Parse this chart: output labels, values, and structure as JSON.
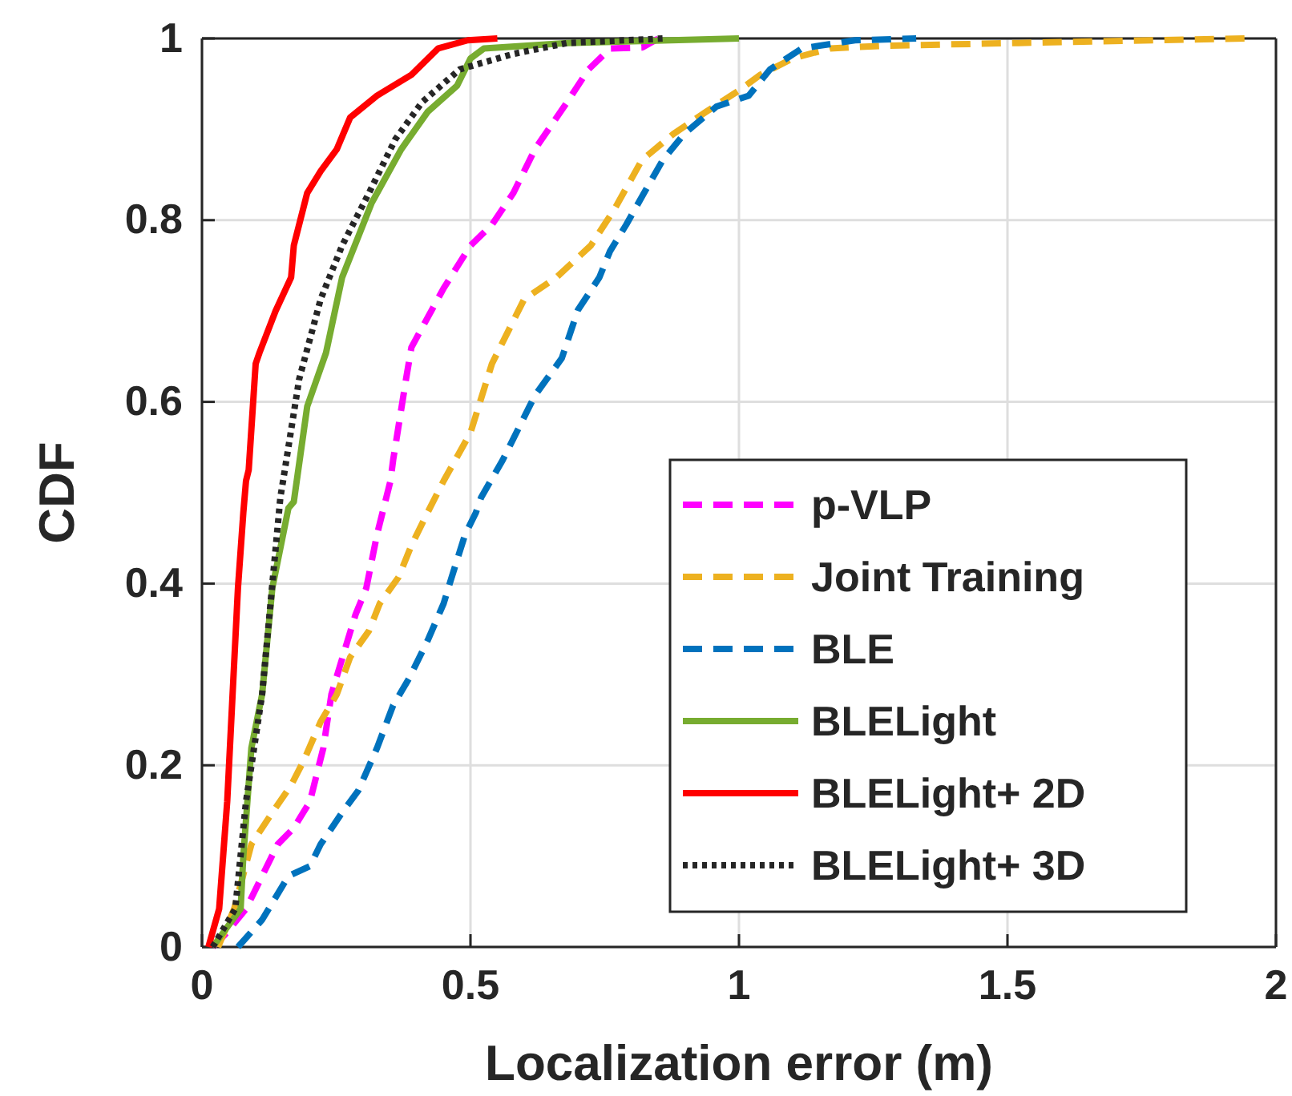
{
  "chart_data": {
    "type": "line",
    "xlabel": "Localization error (m)",
    "ylabel": "CDF",
    "xlim": [
      0,
      2
    ],
    "ylim": [
      0,
      1
    ],
    "xticks": [
      0,
      0.5,
      1,
      1.5,
      2
    ],
    "yticks": [
      0,
      0.2,
      0.4,
      0.6,
      0.8,
      1
    ],
    "grid": true,
    "legend": "bottom right",
    "series": [
      {
        "name": "p-VLP",
        "color": "#ff00ff",
        "line_style": "dashed",
        "x": [
          0.02,
          0.042,
          0.082,
          0.141,
          0.171,
          0.201,
          0.226,
          0.241,
          0.271,
          0.286,
          0.306,
          0.326,
          0.351,
          0.356,
          0.38,
          0.39,
          0.45,
          0.5,
          0.54,
          0.58,
          0.62,
          0.68,
          0.72,
          0.76,
          0.82,
          0.85
        ],
        "values": [
          0,
          0.013,
          0.042,
          0.113,
          0.131,
          0.16,
          0.219,
          0.278,
          0.337,
          0.366,
          0.395,
          0.454,
          0.513,
          0.536,
          0.625,
          0.66,
          0.725,
          0.772,
          0.795,
          0.83,
          0.878,
          0.93,
          0.966,
          0.989,
          0.99,
          1
        ]
      },
      {
        "name": "Joint Training",
        "color": "#edb120",
        "line_style": "dashed",
        "x": [
          0.03,
          0.06,
          0.092,
          0.131,
          0.166,
          0.191,
          0.221,
          0.251,
          0.276,
          0.311,
          0.331,
          0.366,
          0.39,
          0.42,
          0.45,
          0.5,
          0.54,
          0.6,
          0.66,
          0.724,
          0.769,
          0.819,
          0.878,
          0.938,
          0.998,
          1.04,
          1.1,
          1.17,
          1.27,
          1.52,
          1.95
        ],
        "values": [
          0,
          0.042,
          0.113,
          0.148,
          0.178,
          0.207,
          0.248,
          0.278,
          0.319,
          0.348,
          0.378,
          0.407,
          0.442,
          0.478,
          0.513,
          0.566,
          0.642,
          0.713,
          0.737,
          0.772,
          0.813,
          0.866,
          0.895,
          0.919,
          0.942,
          0.96,
          0.978,
          0.989,
          0.992,
          0.995,
          1
        ]
      },
      {
        "name": "BLE",
        "color": "#0072bd",
        "line_style": "dashed",
        "x": [
          0.067,
          0.112,
          0.161,
          0.201,
          0.221,
          0.261,
          0.291,
          0.326,
          0.356,
          0.385,
          0.42,
          0.45,
          0.465,
          0.49,
          0.51,
          0.52,
          0.56,
          0.62,
          0.67,
          0.7,
          0.74,
          0.76,
          0.79,
          0.829,
          0.858,
          0.898,
          0.958,
          1.018,
          1.058,
          1.117,
          1.216,
          1.33
        ],
        "values": [
          0,
          0.03,
          0.078,
          0.089,
          0.113,
          0.148,
          0.172,
          0.219,
          0.266,
          0.295,
          0.337,
          0.378,
          0.407,
          0.454,
          0.478,
          0.495,
          0.536,
          0.607,
          0.648,
          0.701,
          0.737,
          0.766,
          0.795,
          0.836,
          0.866,
          0.895,
          0.925,
          0.937,
          0.966,
          0.989,
          0.998,
          1
        ]
      },
      {
        "name": "BLELight",
        "color": "#77ac30",
        "line_style": "solid",
        "x": [
          0.02,
          0.072,
          0.077,
          0.092,
          0.112,
          0.131,
          0.161,
          0.171,
          0.196,
          0.231,
          0.261,
          0.316,
          0.371,
          0.42,
          0.475,
          0.5,
          0.525,
          0.68,
          1.0
        ],
        "values": [
          0,
          0.042,
          0.1,
          0.219,
          0.278,
          0.395,
          0.483,
          0.49,
          0.595,
          0.654,
          0.737,
          0.819,
          0.878,
          0.919,
          0.948,
          0.978,
          0.989,
          0.995,
          1
        ]
      },
      {
        "name": "BLELight+ 2D",
        "color": "#ff0000",
        "line_style": "solid",
        "x": [
          0.012,
          0.032,
          0.047,
          0.057,
          0.067,
          0.077,
          0.082,
          0.087,
          0.1,
          0.107,
          0.137,
          0.166,
          0.171,
          0.196,
          0.221,
          0.251,
          0.276,
          0.326,
          0.39,
          0.44,
          0.495,
          0.55
        ],
        "values": [
          0,
          0.042,
          0.16,
          0.278,
          0.395,
          0.478,
          0.513,
          0.525,
          0.642,
          0.654,
          0.7,
          0.737,
          0.772,
          0.83,
          0.854,
          0.878,
          0.913,
          0.937,
          0.96,
          0.989,
          0.998,
          1
        ]
      },
      {
        "name": "BLELight+ 3D",
        "color": "#262626",
        "line_style": "dotted",
        "x": [
          0.02,
          0.062,
          0.082,
          0.112,
          0.146,
          0.151,
          0.181,
          0.221,
          0.261,
          0.311,
          0.36,
          0.41,
          0.48,
          0.58,
          0.68,
          0.86
        ],
        "values": [
          0,
          0.042,
          0.16,
          0.278,
          0.495,
          0.513,
          0.625,
          0.713,
          0.772,
          0.83,
          0.889,
          0.93,
          0.966,
          0.983,
          0.995,
          1
        ]
      }
    ]
  }
}
